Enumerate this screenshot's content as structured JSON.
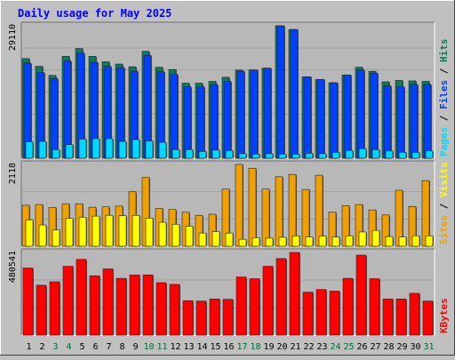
{
  "chart_data": {
    "type": "bar",
    "title": "Daily usage for May 2025",
    "categories": [
      "1",
      "2",
      "3",
      "4",
      "5",
      "6",
      "7",
      "8",
      "9",
      "10",
      "11",
      "12",
      "13",
      "14",
      "15",
      "16",
      "17",
      "18",
      "19",
      "20",
      "21",
      "22",
      "23",
      "24",
      "25",
      "26",
      "27",
      "28",
      "29",
      "30",
      "31"
    ],
    "weekend_days": [
      "3",
      "4",
      "10",
      "11",
      "17",
      "18",
      "24",
      "25",
      "31"
    ],
    "colors": {
      "title": "#0000ff",
      "background": "#c0c0c0",
      "plot_background": "#b8b8b8",
      "weekday_label": "#000000",
      "weekend_label": "#006a3a",
      "hits": "#0d7a5a",
      "files": "#0040ff",
      "pages": "#00d8ff",
      "visits": "#f0a000",
      "sites": "#ffff00",
      "kbytes": "#ff0000"
    },
    "panels": [
      {
        "id": "hits-files-pages",
        "ymax_label": "29110",
        "ymax": 29110,
        "legend": [
          {
            "text": "Pages",
            "color": "#00d8ff"
          },
          {
            "text": " / ",
            "color": "#000000"
          },
          {
            "text": "Files",
            "color": "#0040ff"
          },
          {
            "text": " / ",
            "color": "#000000"
          },
          {
            "text": "Hits",
            "color": "#0d7a5a"
          }
        ],
        "series": [
          {
            "name": "Hits",
            "color": "#0d7a5a",
            "values": [
              21900,
              20200,
              18200,
              22400,
              24100,
              22400,
              21200,
              20700,
              20100,
              23500,
              20000,
              19500,
              16500,
              16500,
              16900,
              17800,
              19400,
              19400,
              19800,
              29110,
              28300,
              17900,
              17300,
              16600,
              18300,
              20000,
              19100,
              16800,
              17100,
              17000,
              16900
            ]
          },
          {
            "name": "Files",
            "color": "#0040ff",
            "values": [
              20900,
              18800,
              17500,
              21400,
              23100,
              21100,
              20200,
              19900,
              19100,
              22600,
              19000,
              18400,
              15700,
              15700,
              16200,
              16900,
              19100,
              19400,
              19800,
              29110,
              28300,
              17900,
              17300,
              16600,
              18300,
              19400,
              18700,
              15900,
              15700,
              16200,
              16200
            ]
          },
          {
            "name": "Pages",
            "color": "#00d8ff",
            "values": [
              3600,
              3700,
              1900,
              3000,
              4200,
              4300,
              4300,
              3700,
              4100,
              3800,
              3500,
              1900,
              1900,
              1500,
              1800,
              1700,
              1000,
              900,
              1000,
              900,
              900,
              1100,
              1000,
              1300,
              1700,
              2100,
              1900,
              1600,
              1300,
              1300,
              1600
            ]
          }
        ]
      },
      {
        "id": "visits-sites",
        "ymax_label": "2118",
        "ymax": 2118,
        "legend": [
          {
            "text": "Sites",
            "color": "#f0a000"
          },
          {
            "text": " / ",
            "color": "#000000"
          },
          {
            "text": "Visits",
            "color": "#ffff00"
          }
        ],
        "series": [
          {
            "name": "Visits",
            "color": "#f0a000",
            "values": [
              1060,
              1080,
              1000,
              1100,
              1100,
              1010,
              1020,
              1040,
              1410,
              1780,
              980,
              950,
              880,
              800,
              830,
              1480,
              2118,
              2020,
              1480,
              1800,
              1860,
              1470,
              1840,
              880,
              1050,
              1080,
              940,
              810,
              1450,
              1030,
              1700
            ]
          },
          {
            "name": "Sites",
            "color": "#ffff00",
            "values": [
              680,
              550,
              420,
              720,
              750,
              780,
              800,
              790,
              800,
              730,
              620,
              570,
              520,
              340,
              380,
              340,
              180,
              220,
              210,
              230,
              270,
              240,
              260,
              240,
              270,
              370,
              410,
              250,
              240,
              270,
              270
            ]
          }
        ]
      },
      {
        "id": "kbytes",
        "ymax_label": "480541",
        "ymax": 480541,
        "legend": [
          {
            "text": "KBytes",
            "color": "#ff0000"
          }
        ],
        "series": [
          {
            "name": "KBytes",
            "color": "#ff0000",
            "values": [
              390000,
              290000,
              310000,
              400000,
              440000,
              345000,
              385000,
              330000,
              350000,
              350000,
              305000,
              295000,
              200000,
              198000,
              210000,
              208000,
              338000,
              328000,
              400000,
              445000,
              480541,
              250000,
              265000,
              256000,
              330000,
              465000,
              328000,
              210000,
              210000,
              243000,
              198000
            ]
          }
        ]
      }
    ]
  }
}
